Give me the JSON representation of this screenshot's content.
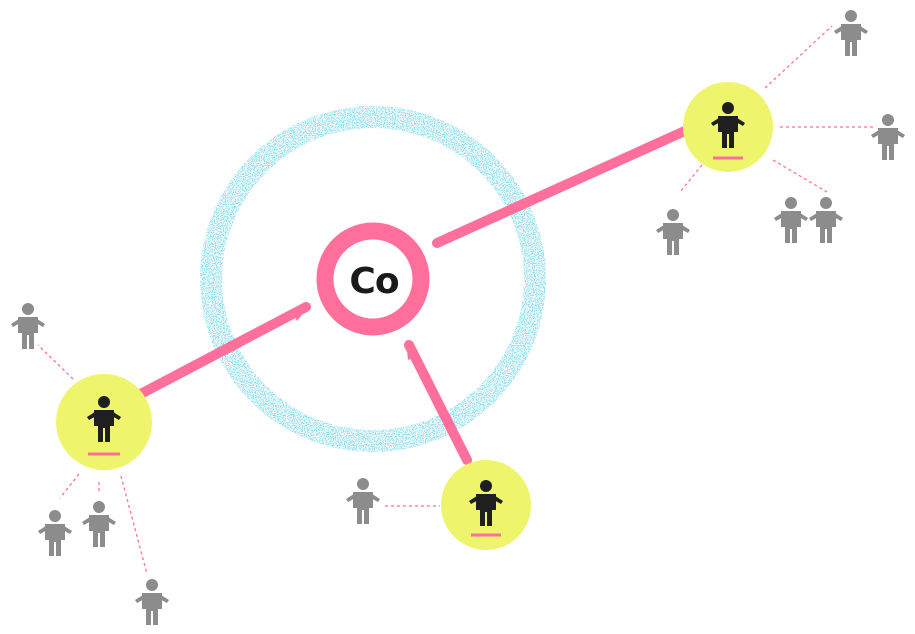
{
  "logo": {
    "label": "Co",
    "ring_color": "#ff6f9c",
    "text_color": "#1a1a1a"
  },
  "colors": {
    "connector": "#ff6f9c",
    "dashed_link": "#ff6f9c",
    "node_fill": "#eef46c",
    "node_person": "#1f1f1f",
    "node_underline": "#ff6f9c",
    "peripheral_person": "#8c8c8c",
    "halo": "#3fb7dc"
  },
  "hubs": [
    {
      "id": "hub-top-right",
      "person_icon": "person-icon",
      "peripheral_people": 5
    },
    {
      "id": "hub-left",
      "person_icon": "person-icon",
      "peripheral_people": 4
    },
    {
      "id": "hub-bottom",
      "person_icon": "person-icon",
      "peripheral_people": 1
    }
  ]
}
